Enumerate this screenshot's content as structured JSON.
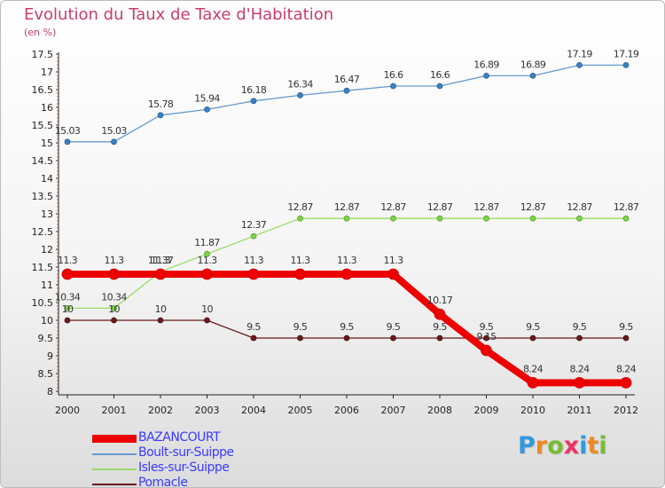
{
  "chart_data": {
    "type": "line",
    "title": "Evolution du Taux de Taxe d'Habitation",
    "subtitle": "(en %)",
    "x": [
      "2000",
      "2001",
      "2002",
      "2003",
      "2004",
      "2005",
      "2006",
      "2007",
      "2008",
      "2009",
      "2010",
      "2011",
      "2012"
    ],
    "ylim": [
      8,
      17.5
    ],
    "yticks": [
      "8",
      "8.5",
      "9",
      "9.5",
      "10",
      "10.5",
      "11",
      "11.5",
      "12",
      "12.5",
      "13",
      "13.5",
      "14",
      "14.5",
      "15",
      "15.5",
      "16",
      "16.5",
      "17",
      "17.5"
    ],
    "series": [
      {
        "name": "BAZANCOURT",
        "color": "#ee0000",
        "values": [
          11.3,
          11.3,
          11.3,
          11.3,
          11.3,
          11.3,
          11.3,
          11.3,
          10.17,
          9.15,
          8.24,
          8.24,
          8.24
        ],
        "labels": [
          "11.3",
          "11.3",
          "11.3",
          "11.3",
          "11.3",
          "11.3",
          "11.3",
          "11.3",
          "10.17",
          "9.15",
          "8.24",
          "8.24",
          "8.24"
        ]
      },
      {
        "name": "Boult-sur-Suippe",
        "color": "#6699cc",
        "values": [
          15.03,
          15.03,
          15.78,
          15.94,
          16.18,
          16.34,
          16.47,
          16.6,
          16.6,
          16.89,
          16.89,
          17.19,
          17.19
        ],
        "labels": [
          "15.03",
          "15.03",
          "15.78",
          "15.94",
          "16.18",
          "16.34",
          "16.47",
          "16.6",
          "16.6",
          "16.89",
          "16.89",
          "17.19",
          "17.19"
        ]
      },
      {
        "name": "Isles-sur-Suippe",
        "color": "#99dd66",
        "values": [
          10.34,
          10.34,
          11.37,
          11.87,
          12.37,
          12.87,
          12.87,
          12.87,
          12.87,
          12.87,
          12.87,
          12.87,
          12.87
        ],
        "labels": [
          "10.34",
          "10.34",
          "11.37",
          "11.87",
          "12.37",
          "12.87",
          "12.87",
          "12.87",
          "12.87",
          "12.87",
          "12.87",
          "12.87",
          "12.87"
        ]
      },
      {
        "name": "Pomacle",
        "color": "#661a1a",
        "values": [
          10,
          10,
          10,
          10,
          9.5,
          9.5,
          9.5,
          9.5,
          9.5,
          9.5,
          9.5,
          9.5,
          9.5
        ],
        "labels": [
          "10",
          "10",
          "10",
          "10",
          "9.5",
          "9.5",
          "9.5",
          "9.5",
          "9.5",
          "9.5",
          "9.5",
          "9.5",
          "9.5"
        ]
      }
    ],
    "grid": false,
    "legend_position": "bottom-left"
  },
  "legend": [
    {
      "label": "BAZANCOURT",
      "color": "#ee0000"
    },
    {
      "label": "Boult-sur-Suippe",
      "color": "#6699cc"
    },
    {
      "label": "Isles-sur-Suippe",
      "color": "#99dd66"
    },
    {
      "label": "Pomacle",
      "color": "#661a1a"
    }
  ],
  "logo": {
    "text": "Proxiti",
    "letters": [
      "P",
      "r",
      "o",
      "x",
      "i",
      "t",
      "i"
    ],
    "colors": [
      "#3399dd",
      "#ee8822",
      "#77bb33",
      "#ee3366",
      "#3399dd",
      "#ee8822",
      "#77bb33"
    ]
  }
}
